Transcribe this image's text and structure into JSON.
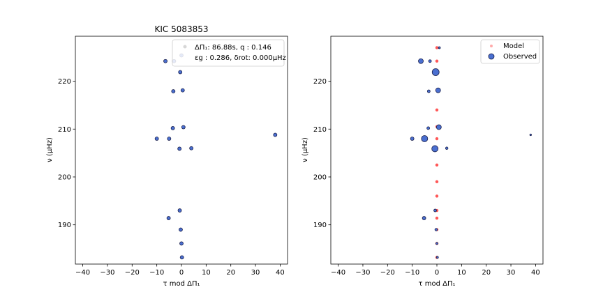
{
  "figure": {
    "left_title": "KIC 5083853"
  },
  "legends": {
    "left_line1": "ΔΠ₁: 86.88s, q :  0.146",
    "left_line2": "εg : 0.286, δrot: 0.000μHz",
    "right_model": "Model",
    "right_observed": "Observed"
  },
  "axes_text": {
    "xlabel": "τ mod ΔΠ₁",
    "ylabel": "ν (μHz)"
  },
  "colors": {
    "observed_fill": "#4a6fd0",
    "observed_edge": "#1a1f4a",
    "model": "#ff3b3b",
    "model_legend": "#ffaaaa",
    "left_legend_marker": "#d7d7d7"
  },
  "chart_data": [
    {
      "type": "scatter",
      "title": "KIC 5083853",
      "xlabel": "τ mod ΔΠ₁",
      "ylabel": "ν (μHz)",
      "xlim": [
        -43,
        43
      ],
      "ylim": [
        181.8,
        229.4
      ],
      "xticks": [
        -40,
        -30,
        -20,
        -10,
        0,
        10,
        20,
        30,
        40
      ],
      "yticks": [
        190,
        200,
        210,
        220
      ],
      "grid": false,
      "legend_position": "top-right",
      "series": [
        {
          "name": "Observed",
          "points": [
            {
              "x": 0.0,
              "y": 225.4
            },
            {
              "x": -6.5,
              "y": 224.2
            },
            {
              "x": -3.0,
              "y": 224.2
            },
            {
              "x": -0.5,
              "y": 221.9
            },
            {
              "x": -3.3,
              "y": 217.9
            },
            {
              "x": 0.5,
              "y": 218.1
            },
            {
              "x": 0.8,
              "y": 210.4
            },
            {
              "x": -3.5,
              "y": 210.2
            },
            {
              "x": -10.0,
              "y": 208.0
            },
            {
              "x": -5.0,
              "y": 208.0
            },
            {
              "x": 38.0,
              "y": 208.8
            },
            {
              "x": -0.8,
              "y": 205.9
            },
            {
              "x": 4.0,
              "y": 206.0
            },
            {
              "x": -0.7,
              "y": 193.0
            },
            {
              "x": -5.2,
              "y": 191.4
            },
            {
              "x": -0.3,
              "y": 189.0
            },
            {
              "x": 0.0,
              "y": 186.1
            },
            {
              "x": 0.2,
              "y": 183.2
            }
          ]
        }
      ]
    },
    {
      "type": "scatter",
      "title": "",
      "xlabel": "τ mod ΔΠ₁",
      "ylabel": "ν (μHz)",
      "xlim": [
        -43,
        43
      ],
      "ylim": [
        181.8,
        229.4
      ],
      "xticks": [
        -40,
        -30,
        -20,
        -10,
        0,
        10,
        20,
        30,
        40
      ],
      "yticks": [
        190,
        200,
        210,
        220
      ],
      "grid": false,
      "legend_position": "top-right",
      "series": [
        {
          "name": "Model",
          "points": [
            {
              "x": 0.0,
              "y": 227.0
            },
            {
              "x": 0.0,
              "y": 224.2
            },
            {
              "x": 0.0,
              "y": 221.9
            },
            {
              "x": 0.0,
              "y": 218.1
            },
            {
              "x": 0.0,
              "y": 214.0
            },
            {
              "x": 0.0,
              "y": 210.5
            },
            {
              "x": 0.0,
              "y": 208.0
            },
            {
              "x": 0.0,
              "y": 206.0
            },
            {
              "x": 0.0,
              "y": 202.5
            },
            {
              "x": 0.0,
              "y": 199.0
            },
            {
              "x": 0.0,
              "y": 196.0
            },
            {
              "x": 0.0,
              "y": 193.0
            },
            {
              "x": 0.0,
              "y": 191.4
            },
            {
              "x": 0.0,
              "y": 189.0
            },
            {
              "x": 0.0,
              "y": 186.1
            },
            {
              "x": 0.0,
              "y": 183.2
            }
          ]
        },
        {
          "name": "Observed",
          "points": [
            {
              "x": 1.0,
              "y": 227.0,
              "size": 1.5
            },
            {
              "x": -6.5,
              "y": 224.2,
              "size": 3.5
            },
            {
              "x": -2.8,
              "y": 224.2,
              "size": 2.0
            },
            {
              "x": -0.5,
              "y": 221.9,
              "size": 5.0
            },
            {
              "x": -3.3,
              "y": 217.9,
              "size": 2.0
            },
            {
              "x": 0.5,
              "y": 218.1,
              "size": 3.5
            },
            {
              "x": 0.8,
              "y": 210.4,
              "size": 3.5
            },
            {
              "x": -3.5,
              "y": 210.2,
              "size": 2.0
            },
            {
              "x": -10.0,
              "y": 208.0,
              "size": 2.5
            },
            {
              "x": -5.0,
              "y": 208.0,
              "size": 4.5
            },
            {
              "x": 38.0,
              "y": 208.8,
              "size": 1.2
            },
            {
              "x": -0.8,
              "y": 205.9,
              "size": 4.5
            },
            {
              "x": 4.0,
              "y": 206.0,
              "size": 1.8
            },
            {
              "x": -0.7,
              "y": 193.0,
              "size": 2.0
            },
            {
              "x": -5.2,
              "y": 191.4,
              "size": 2.5
            },
            {
              "x": -0.3,
              "y": 189.0,
              "size": 1.8
            },
            {
              "x": 0.0,
              "y": 186.1,
              "size": 1.5
            },
            {
              "x": 0.2,
              "y": 183.2,
              "size": 1.5
            }
          ]
        }
      ]
    }
  ]
}
